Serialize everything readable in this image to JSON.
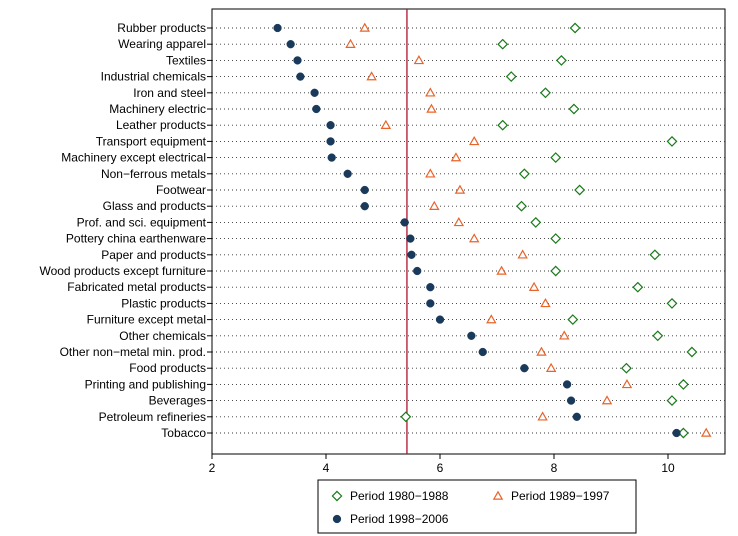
{
  "chart_data": {
    "type": "scatter",
    "orientation": "horizontal-dot-plot",
    "categories": [
      "Rubber products",
      "Wearing apparel",
      "Textiles",
      "Industrial chemicals",
      "Iron and steel",
      "Machinery electric",
      "Leather products",
      "Transport equipment",
      "Machinery except electrical",
      "Non−ferrous metals",
      "Footwear",
      "Glass and products",
      "Prof. and sci. equipment",
      "Pottery china earthenware",
      "Paper and products",
      "Wood products except furniture",
      "Fabricated metal products",
      "Plastic products",
      "Furniture except metal",
      "Other chemicals",
      "Other non−metal min. prod.",
      "Food products",
      "Printing and publishing",
      "Beverages",
      "Petroleum refineries",
      "Tobacco"
    ],
    "series": [
      {
        "name": "Period 1980−1988",
        "marker": "diamond-open",
        "color": "#1a7a1a",
        "values": [
          8.37,
          7.1,
          8.13,
          7.25,
          7.85,
          8.35,
          7.1,
          10.07,
          8.03,
          7.48,
          8.45,
          7.43,
          7.68,
          8.03,
          9.77,
          8.03,
          9.47,
          10.07,
          8.33,
          9.82,
          10.42,
          9.27,
          10.27,
          10.07,
          5.4,
          10.27
        ]
      },
      {
        "name": "Period 1989−1997",
        "marker": "triangle-open",
        "color": "#e8642a",
        "values": [
          4.68,
          4.43,
          5.63,
          4.8,
          5.83,
          5.85,
          5.05,
          6.6,
          6.28,
          5.83,
          6.35,
          5.9,
          6.33,
          6.6,
          7.45,
          7.08,
          7.65,
          7.85,
          6.9,
          8.18,
          7.78,
          7.95,
          9.28,
          8.93,
          7.8,
          10.67
        ]
      },
      {
        "name": "Period 1998−2006",
        "marker": "circle-filled",
        "color": "#1a3a5c",
        "values": [
          3.15,
          3.38,
          3.5,
          3.55,
          3.8,
          3.83,
          4.08,
          4.08,
          4.1,
          4.38,
          4.68,
          4.68,
          5.38,
          5.48,
          5.5,
          5.6,
          5.83,
          5.83,
          6.0,
          6.55,
          6.75,
          7.48,
          8.23,
          8.3,
          8.4,
          10.15
        ]
      }
    ],
    "xlim": [
      2,
      11
    ],
    "xticks": [
      "2",
      "4",
      "6",
      "8",
      "10"
    ],
    "reference_line": {
      "x": 5.42,
      "color": "#b0122e"
    },
    "grid": "dotted horizontal lines per category",
    "legend": {
      "placement": "bottom",
      "columns": 2
    }
  }
}
